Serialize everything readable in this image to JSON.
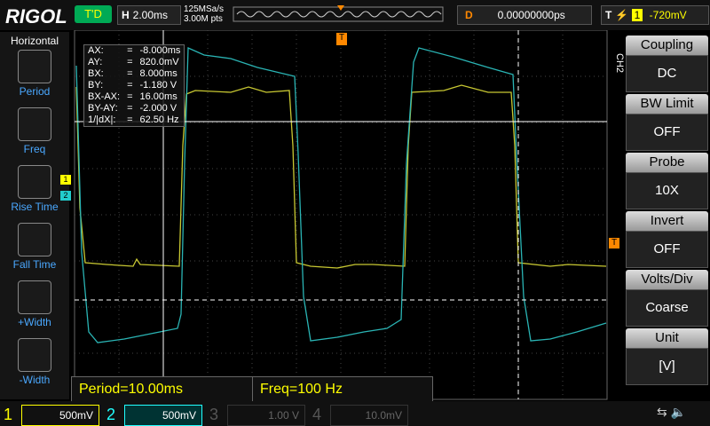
{
  "header": {
    "brand": "RIGOL",
    "trigger_status": "T'D",
    "timebase_label": "H",
    "timebase": "2.00ms",
    "sample_rate": "125MSa/s",
    "points": "3.00M pts",
    "delay_label": "D",
    "delay": "0.00000000ps",
    "trigger_label": "T",
    "trigger_channel": "1",
    "trigger_level": "-720mV"
  },
  "left_menu": {
    "title": "Horizontal",
    "items": [
      "Period",
      "Freq",
      "Rise Time",
      "Fall Time",
      "+Width",
      "-Width"
    ]
  },
  "cursor_table": {
    "rows": [
      [
        "AX:",
        "=",
        "-8.000ms"
      ],
      [
        "AY:",
        "=",
        "820.0mV"
      ],
      [
        "BX:",
        "=",
        "8.000ms"
      ],
      [
        "BY:",
        "=",
        "-1.180 V"
      ],
      [
        "BX-AX:",
        "=",
        "16.00ms"
      ],
      [
        "BY-AY:",
        "=",
        "-2.000 V"
      ],
      [
        "1/|dX|:",
        "=",
        "62.50 Hz"
      ]
    ]
  },
  "measurements": [
    "Period=10.00ms",
    "Freq=100 Hz"
  ],
  "right_menu": {
    "channel": "CH2",
    "items": [
      {
        "label": "Coupling",
        "value": "DC"
      },
      {
        "label": "BW Limit",
        "value": "OFF"
      },
      {
        "label": "Probe",
        "value": "10X"
      },
      {
        "label": "Invert",
        "value": "OFF"
      },
      {
        "label": "Volts/Div",
        "value": "Coarse"
      },
      {
        "label": "Unit",
        "value": "[V]"
      }
    ]
  },
  "channels": [
    {
      "number": "1",
      "scale": "500mV"
    },
    {
      "number": "2",
      "scale": "500mV"
    },
    {
      "number": "3",
      "scale": "1.00 V"
    },
    {
      "number": "4",
      "scale": "10.0mV"
    }
  ],
  "markers": {
    "ch1": "1",
    "ch2": "2",
    "trigger": "T"
  }
}
